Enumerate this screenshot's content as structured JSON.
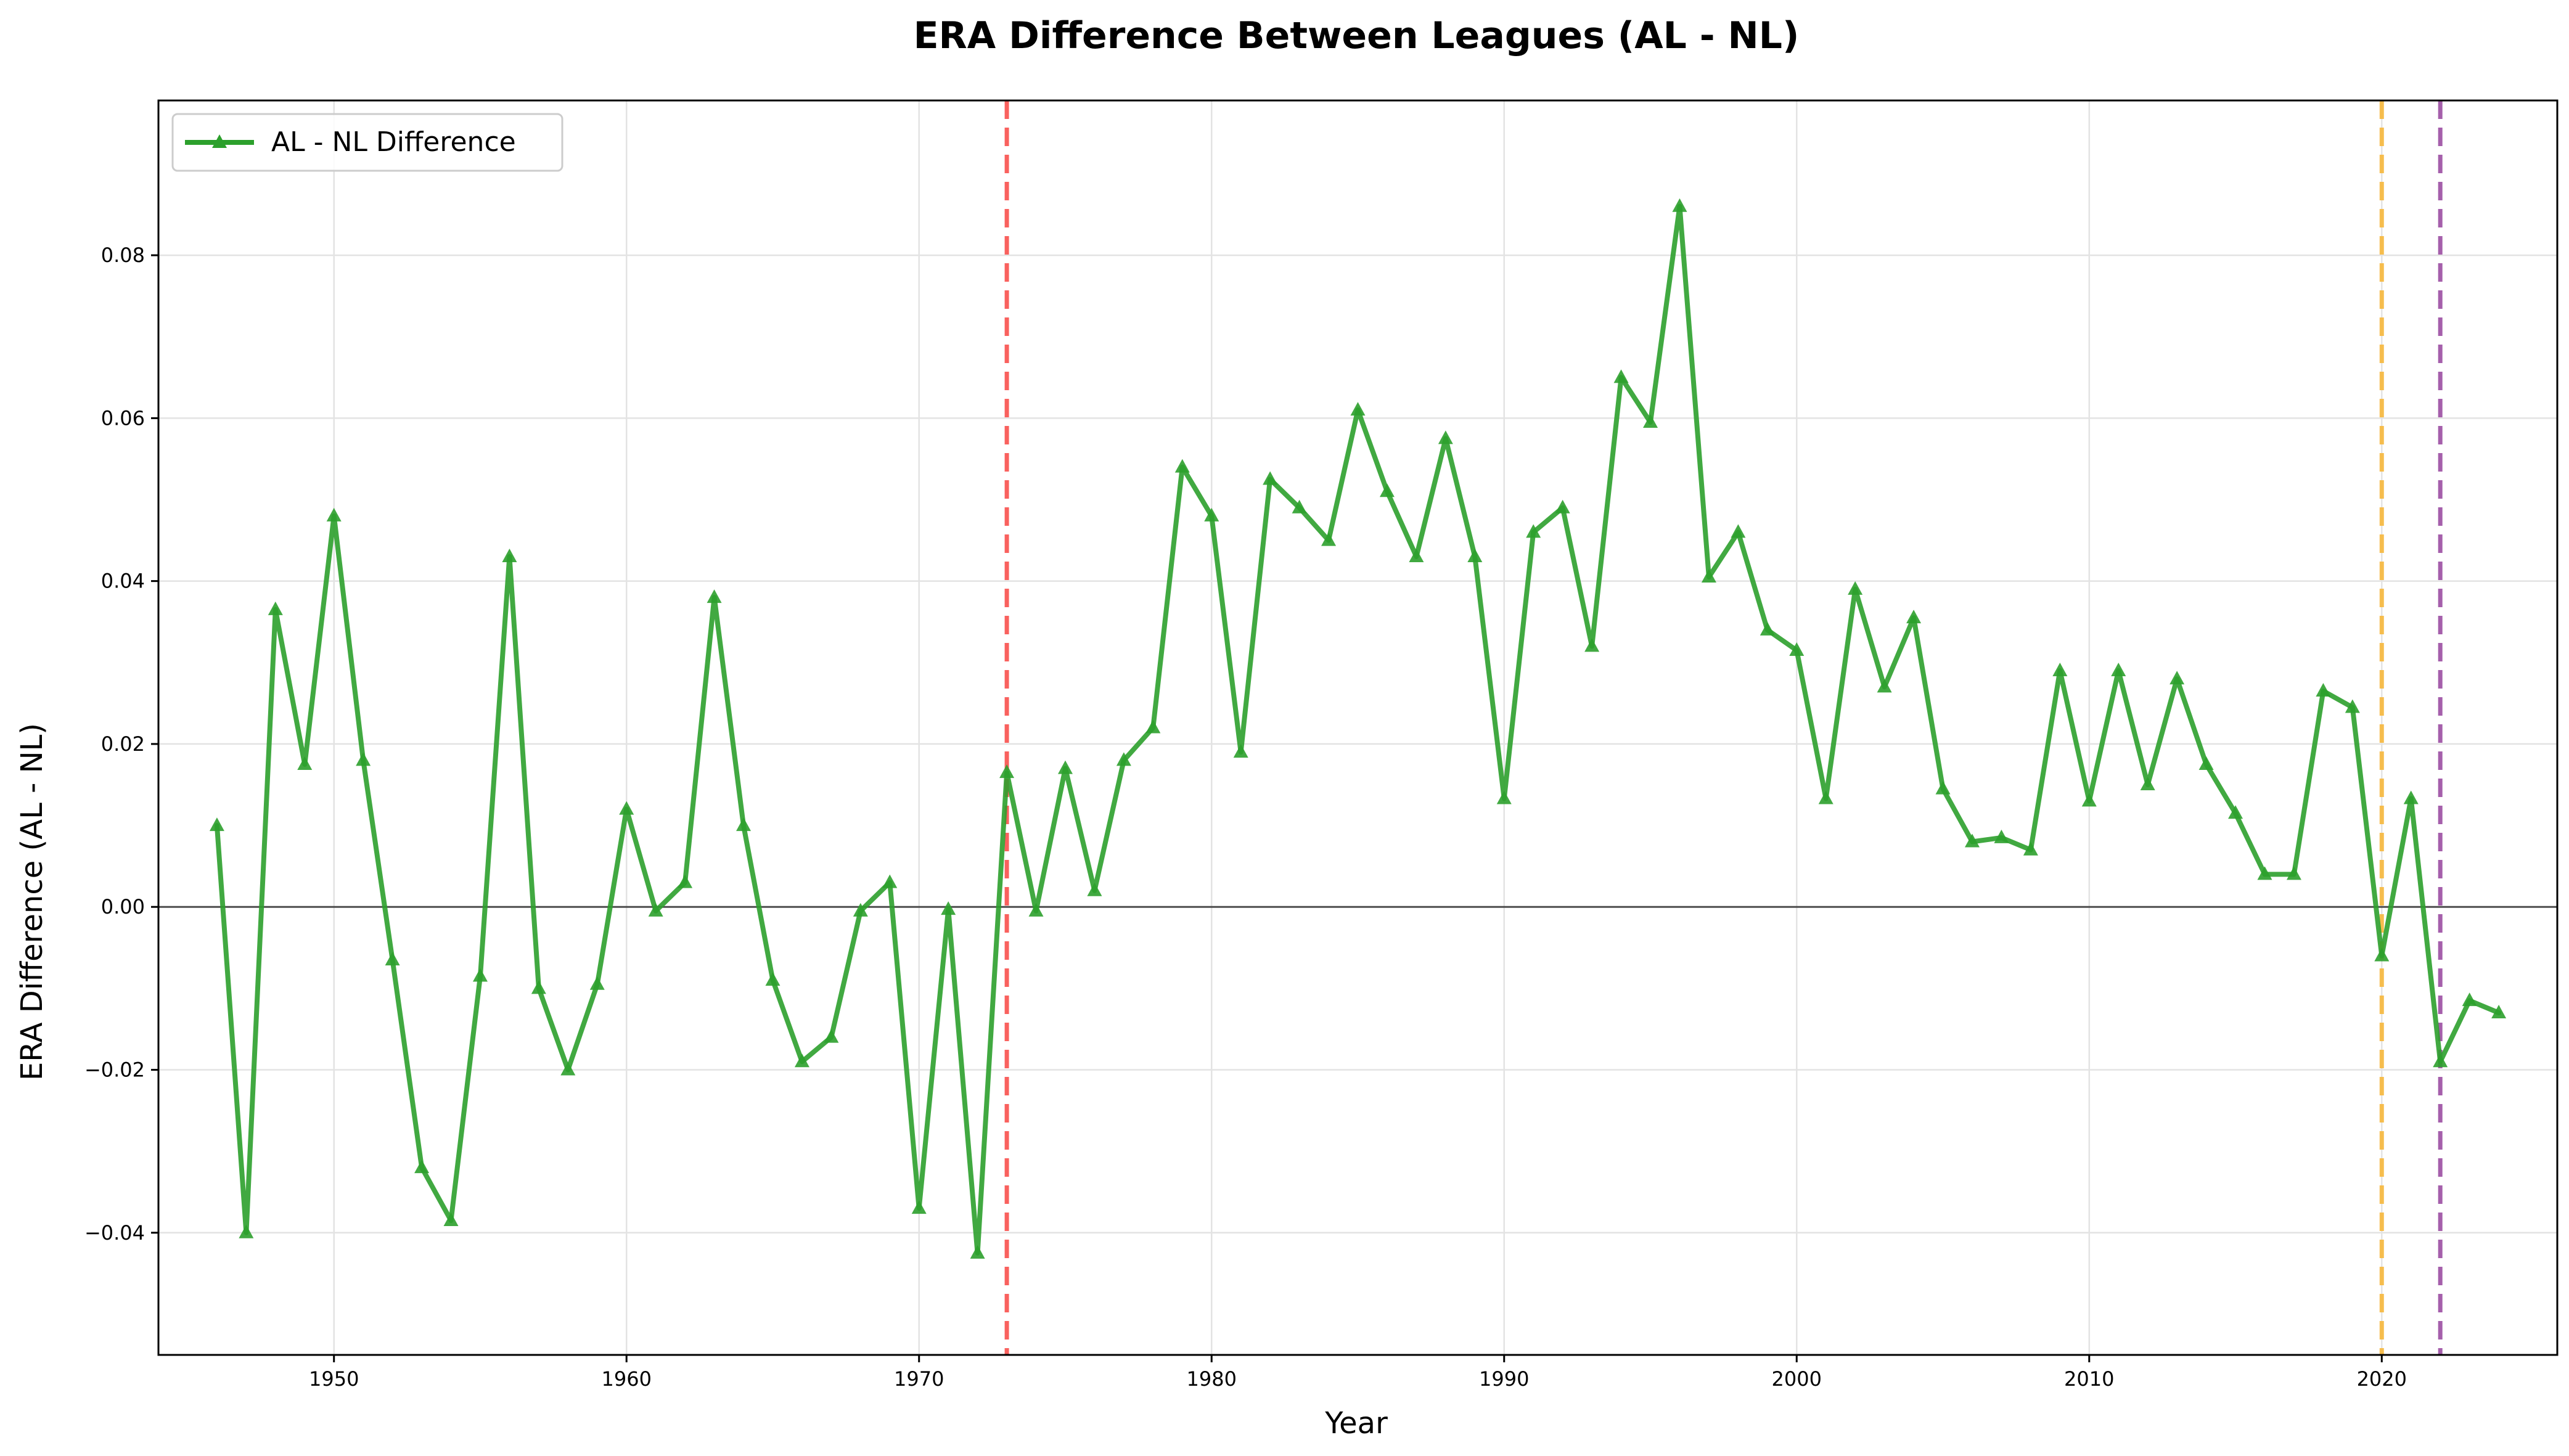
{
  "chart_data": {
    "type": "line",
    "title": "ERA Difference Between Leagues (AL - NL)",
    "xlabel": "Year",
    "ylabel": "ERA Difference (AL - NL)",
    "xlim": [
      1944,
      2026
    ],
    "ylim": [
      -0.055,
      0.099
    ],
    "x_ticks": [
      1950,
      1960,
      1970,
      1980,
      1990,
      2000,
      2010,
      2020
    ],
    "y_ticks": [
      -0.04,
      -0.02,
      0.0,
      0.02,
      0.04,
      0.06,
      0.08
    ],
    "y_tick_labels": [
      "−0.04",
      "−0.02",
      "0.00",
      "0.02",
      "0.04",
      "0.06",
      "0.08"
    ],
    "grid": true,
    "legend_position": "upper-left",
    "series": [
      {
        "name": "AL - NL Difference",
        "color": "#2ca02c",
        "marker": "triangle",
        "x": [
          1946,
          1947,
          1948,
          1949,
          1950,
          1951,
          1952,
          1953,
          1954,
          1955,
          1956,
          1957,
          1958,
          1959,
          1960,
          1961,
          1962,
          1963,
          1964,
          1965,
          1966,
          1967,
          1968,
          1969,
          1970,
          1971,
          1972,
          1973,
          1974,
          1975,
          1976,
          1977,
          1978,
          1979,
          1980,
          1981,
          1982,
          1983,
          1984,
          1985,
          1986,
          1987,
          1988,
          1989,
          1990,
          1991,
          1992,
          1993,
          1994,
          1995,
          1996,
          1997,
          1998,
          1999,
          2000,
          2001,
          2002,
          2003,
          2004,
          2005,
          2006,
          2007,
          2008,
          2009,
          2010,
          2011,
          2012,
          2013,
          2014,
          2015,
          2016,
          2017,
          2018,
          2019,
          2020,
          2021,
          2022,
          2023,
          2024
        ],
        "y": [
          0.01,
          -0.04,
          0.0365,
          0.0175,
          0.048,
          0.018,
          -0.0065,
          -0.032,
          -0.0385,
          -0.0085,
          0.043,
          -0.01,
          -0.02,
          -0.0095,
          0.012,
          -0.0005,
          0.003,
          0.038,
          0.01,
          -0.009,
          -0.019,
          -0.016,
          -0.0005,
          0.003,
          -0.037,
          -0.0003,
          -0.0425,
          0.0165,
          -0.0005,
          0.017,
          0.002,
          0.018,
          0.022,
          0.054,
          0.048,
          0.019,
          0.0525,
          0.049,
          0.045,
          0.061,
          0.051,
          0.043,
          0.0575,
          0.043,
          0.0133,
          0.046,
          0.049,
          0.032,
          0.065,
          0.0595,
          0.086,
          0.0405,
          0.046,
          0.034,
          0.0315,
          0.0133,
          0.039,
          0.027,
          0.0355,
          0.0145,
          0.008,
          0.0085,
          0.007,
          0.029,
          0.013,
          0.029,
          0.015,
          0.028,
          0.0175,
          0.0115,
          0.004,
          0.004,
          0.0265,
          0.0245,
          -0.006,
          0.0133,
          -0.019,
          -0.0115,
          -0.013
        ]
      }
    ],
    "reference_lines": [
      {
        "orientation": "vertical",
        "x": 1973,
        "color": "#f8504d",
        "style": "dashed"
      },
      {
        "orientation": "vertical",
        "x": 2020,
        "color": "#f6b73c",
        "style": "dashed"
      },
      {
        "orientation": "vertical",
        "x": 2022,
        "color": "#9b4ea2",
        "style": "dashed"
      },
      {
        "orientation": "horizontal",
        "y": 0,
        "color": "#333333",
        "style": "solid"
      }
    ]
  }
}
